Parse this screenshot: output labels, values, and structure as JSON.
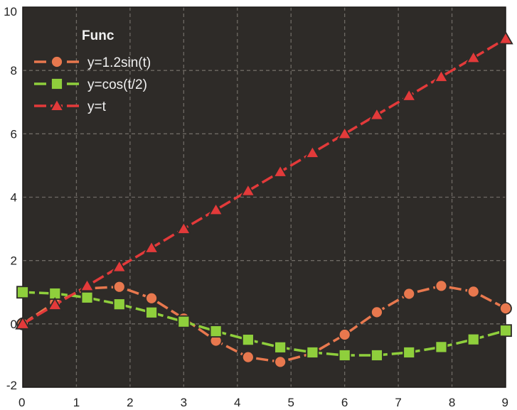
{
  "chart_data": {
    "type": "line",
    "title": "",
    "xlabel": "",
    "ylabel": "",
    "xlim": [
      0,
      9
    ],
    "ylim": [
      -2,
      10
    ],
    "x_ticks": [
      0,
      1,
      2,
      3,
      4,
      5,
      6,
      7,
      8,
      9
    ],
    "y_ticks": [
      -2,
      0,
      2,
      4,
      6,
      8,
      10
    ],
    "grid": true,
    "grid_style": "dashed",
    "background": "#2e2b28",
    "legend": {
      "title": "Func",
      "placement": "top-left"
    },
    "x": [
      0,
      0.6,
      1.2,
      1.8,
      2.4,
      3.0,
      3.6,
      4.2,
      4.8,
      5.4,
      6.0,
      6.6,
      7.2,
      7.8,
      8.4,
      9.0
    ],
    "series": [
      {
        "name": "y=1.2sin(t)",
        "color": "#e8784e",
        "marker": "circle",
        "values": [
          0,
          0.68,
          1.12,
          1.17,
          0.81,
          0.17,
          -0.53,
          -1.05,
          -1.2,
          -0.93,
          -0.34,
          0.37,
          0.95,
          1.2,
          1.02,
          0.49
        ]
      },
      {
        "name": "y=cos(t/2)",
        "color": "#8fcf3c",
        "marker": "square",
        "values": [
          1.0,
          0.96,
          0.83,
          0.62,
          0.36,
          0.07,
          -0.23,
          -0.5,
          -0.74,
          -0.9,
          -0.99,
          -0.99,
          -0.9,
          -0.73,
          -0.49,
          -0.21
        ]
      },
      {
        "name": "y=t",
        "color": "#e33a3a",
        "marker": "triangle",
        "values": [
          0,
          0.6,
          1.2,
          1.8,
          2.4,
          3.0,
          3.6,
          4.2,
          4.8,
          5.4,
          6.0,
          6.6,
          7.2,
          7.8,
          8.4,
          9.0
        ]
      }
    ]
  }
}
